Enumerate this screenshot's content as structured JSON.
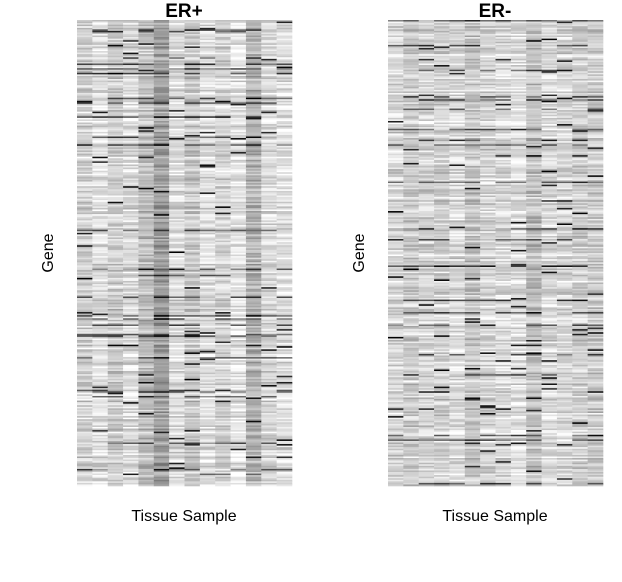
{
  "chart_data": [
    {
      "type": "heatmap",
      "title": "ER+",
      "xlabel": "Tissue Sample",
      "ylabel": "Gene",
      "colormap": [
        "#ffffff",
        "#000000"
      ],
      "n_columns": 14,
      "n_rows": 300,
      "column_mean_gray": [
        0.82,
        0.88,
        0.8,
        0.86,
        0.74,
        0.62,
        0.86,
        0.78,
        0.88,
        0.83,
        0.9,
        0.7,
        0.85,
        0.88
      ],
      "seed": 7
    },
    {
      "type": "heatmap",
      "title": "ER-",
      "xlabel": "Tissue Sample",
      "ylabel": "Gene",
      "colormap": [
        "#ffffff",
        "#000000"
      ],
      "n_columns": 14,
      "n_rows": 300,
      "column_mean_gray": [
        0.85,
        0.8,
        0.84,
        0.82,
        0.86,
        0.78,
        0.84,
        0.86,
        0.88,
        0.76,
        0.86,
        0.84,
        0.82,
        0.8
      ],
      "seed": 19
    }
  ]
}
